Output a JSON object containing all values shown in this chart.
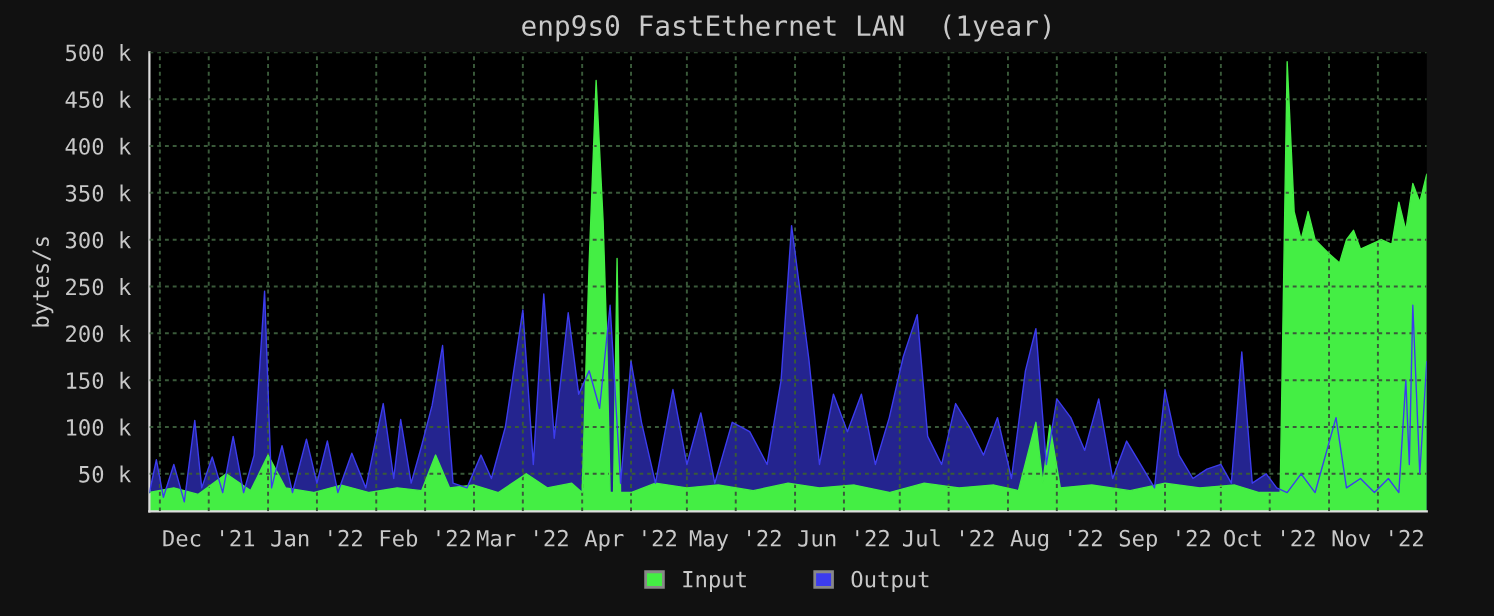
{
  "chart_data": {
    "type": "area",
    "title": "enp9s0 FastEthernet LAN  (1year)",
    "ylabel": "bytes/s",
    "xlim": [
      "2021-11-28",
      "2022-11-29"
    ],
    "xticks": [
      {
        "value": "2021-12-01",
        "label": null
      },
      {
        "value": "2021-12-15",
        "label": "Dec '21"
      },
      {
        "value": "2022-01-01",
        "label": null
      },
      {
        "value": "2022-01-15",
        "label": "Jan '22"
      },
      {
        "value": "2022-02-01",
        "label": null
      },
      {
        "value": "2022-02-15",
        "label": "Feb '22"
      },
      {
        "value": "2022-03-01",
        "label": null
      },
      {
        "value": "2022-03-15",
        "label": "Mar '22"
      },
      {
        "value": "2022-04-01",
        "label": null
      },
      {
        "value": "2022-04-15",
        "label": "Apr '22"
      },
      {
        "value": "2022-05-01",
        "label": null
      },
      {
        "value": "2022-05-15",
        "label": "May '22"
      },
      {
        "value": "2022-06-01",
        "label": null
      },
      {
        "value": "2022-06-15",
        "label": "Jun '22"
      },
      {
        "value": "2022-07-01",
        "label": null
      },
      {
        "value": "2022-07-15",
        "label": "Jul '22"
      },
      {
        "value": "2022-08-01",
        "label": null
      },
      {
        "value": "2022-08-15",
        "label": "Aug '22"
      },
      {
        "value": "2022-09-01",
        "label": null
      },
      {
        "value": "2022-09-15",
        "label": "Sep '22"
      },
      {
        "value": "2022-10-01",
        "label": null
      },
      {
        "value": "2022-10-15",
        "label": "Oct '22"
      },
      {
        "value": "2022-11-01",
        "label": null
      },
      {
        "value": "2022-11-15",
        "label": "Nov '22"
      }
    ],
    "ylim": [
      10000,
      500000
    ],
    "yticks": [
      {
        "value": 50000,
        "label": "50 k"
      },
      {
        "value": 100000,
        "label": "100 k"
      },
      {
        "value": 150000,
        "label": "150 k"
      },
      {
        "value": 200000,
        "label": "200 k"
      },
      {
        "value": 250000,
        "label": "250 k"
      },
      {
        "value": 300000,
        "label": "300 k"
      },
      {
        "value": 350000,
        "label": "350 k"
      },
      {
        "value": 400000,
        "label": "400 k"
      },
      {
        "value": 450000,
        "label": "450 k"
      },
      {
        "value": 500000,
        "label": "500 k"
      }
    ],
    "grid": true,
    "legend": "bottom",
    "series": [
      {
        "name": "Input",
        "color": "#44ee44",
        "x": [
          "2021-11-28",
          "2021-12-05",
          "2021-12-12",
          "2021-12-20",
          "2021-12-27",
          "2022-01-01",
          "2022-01-06",
          "2022-01-14",
          "2022-01-22",
          "2022-01-30",
          "2022-02-07",
          "2022-02-14",
          "2022-02-18",
          "2022-02-22",
          "2022-03-01",
          "2022-03-08",
          "2022-03-16",
          "2022-03-22",
          "2022-03-29",
          "2022-04-01",
          "2022-04-03",
          "2022-04-05",
          "2022-04-07",
          "2022-04-08",
          "2022-04-09",
          "2022-04-10",
          "2022-04-11",
          "2022-04-12",
          "2022-04-15",
          "2022-04-22",
          "2022-05-01",
          "2022-05-10",
          "2022-05-20",
          "2022-05-30",
          "2022-06-08",
          "2022-06-18",
          "2022-06-28",
          "2022-07-08",
          "2022-07-18",
          "2022-07-28",
          "2022-08-04",
          "2022-08-09",
          "2022-08-11",
          "2022-08-13",
          "2022-08-16",
          "2022-08-25",
          "2022-09-05",
          "2022-09-15",
          "2022-09-25",
          "2022-10-05",
          "2022-10-12",
          "2022-10-18",
          "2022-10-20",
          "2022-10-22",
          "2022-10-24",
          "2022-10-26",
          "2022-10-28",
          "2022-11-01",
          "2022-11-04",
          "2022-11-06",
          "2022-11-08",
          "2022-11-10",
          "2022-11-13",
          "2022-11-16",
          "2022-11-19",
          "2022-11-21",
          "2022-11-23",
          "2022-11-25",
          "2022-11-27",
          "2022-11-29"
        ],
        "values": [
          30000,
          35000,
          28000,
          50000,
          32000,
          70000,
          35000,
          30000,
          38000,
          30000,
          35000,
          32000,
          70000,
          35000,
          38000,
          30000,
          50000,
          35000,
          40000,
          30000,
          275000,
          470000,
          320000,
          200000,
          30000,
          30000,
          280000,
          30000,
          30000,
          40000,
          35000,
          38000,
          32000,
          40000,
          35000,
          38000,
          30000,
          40000,
          35000,
          38000,
          32000,
          105000,
          40000,
          102000,
          35000,
          38000,
          32000,
          40000,
          35000,
          38000,
          30000,
          30000,
          490000,
          330000,
          300000,
          330000,
          300000,
          285000,
          275000,
          300000,
          310000,
          290000,
          295000,
          300000,
          295000,
          340000,
          310000,
          360000,
          340000,
          370000
        ]
      },
      {
        "name": "Output",
        "color": "#3c3cee",
        "x": [
          "2021-11-28",
          "2021-11-30",
          "2021-12-02",
          "2021-12-05",
          "2021-12-08",
          "2021-12-11",
          "2021-12-13",
          "2021-12-16",
          "2021-12-19",
          "2021-12-22",
          "2021-12-25",
          "2021-12-28",
          "2021-12-31",
          "2022-01-02",
          "2022-01-05",
          "2022-01-08",
          "2022-01-12",
          "2022-01-15",
          "2022-01-18",
          "2022-01-21",
          "2022-01-25",
          "2022-01-29",
          "2022-02-03",
          "2022-02-06",
          "2022-02-08",
          "2022-02-11",
          "2022-02-14",
          "2022-02-17",
          "2022-02-20",
          "2022-02-23",
          "2022-02-27",
          "2022-03-03",
          "2022-03-06",
          "2022-03-10",
          "2022-03-15",
          "2022-03-18",
          "2022-03-21",
          "2022-03-24",
          "2022-03-28",
          "2022-03-31",
          "2022-04-03",
          "2022-04-06",
          "2022-04-09",
          "2022-04-12",
          "2022-04-15",
          "2022-04-18",
          "2022-04-22",
          "2022-04-27",
          "2022-05-01",
          "2022-05-05",
          "2022-05-09",
          "2022-05-14",
          "2022-05-19",
          "2022-05-24",
          "2022-05-28",
          "2022-05-31",
          "2022-06-05",
          "2022-06-08",
          "2022-06-12",
          "2022-06-16",
          "2022-06-20",
          "2022-06-24",
          "2022-06-28",
          "2022-07-02",
          "2022-07-06",
          "2022-07-09",
          "2022-07-13",
          "2022-07-17",
          "2022-07-21",
          "2022-07-25",
          "2022-07-29",
          "2022-08-02",
          "2022-08-06",
          "2022-08-09",
          "2022-08-12",
          "2022-08-15",
          "2022-08-19",
          "2022-08-23",
          "2022-08-27",
          "2022-08-31",
          "2022-09-04",
          "2022-09-08",
          "2022-09-12",
          "2022-09-15",
          "2022-09-19",
          "2022-09-23",
          "2022-09-27",
          "2022-10-01",
          "2022-10-04",
          "2022-10-07",
          "2022-10-10",
          "2022-10-14",
          "2022-10-17",
          "2022-10-20",
          "2022-10-24",
          "2022-10-28",
          "2022-11-03",
          "2022-11-06",
          "2022-11-10",
          "2022-11-14",
          "2022-11-18",
          "2022-11-21",
          "2022-11-23",
          "2022-11-24",
          "2022-11-25",
          "2022-11-27",
          "2022-11-29"
        ],
        "values": [
          30000,
          65000,
          25000,
          60000,
          20000,
          107000,
          35000,
          68000,
          30000,
          90000,
          30000,
          70000,
          245000,
          35000,
          80000,
          30000,
          87000,
          40000,
          85000,
          30000,
          72000,
          35000,
          125000,
          45000,
          108000,
          40000,
          80000,
          123000,
          187000,
          40000,
          35000,
          70000,
          45000,
          100000,
          225000,
          60000,
          242000,
          88000,
          222000,
          135000,
          160000,
          120000,
          230000,
          40000,
          170000,
          105000,
          40000,
          140000,
          60000,
          115000,
          40000,
          105000,
          95000,
          60000,
          150000,
          315000,
          171000,
          60000,
          135000,
          95000,
          135000,
          60000,
          110000,
          175000,
          220000,
          90000,
          60000,
          125000,
          100000,
          70000,
          110000,
          45000,
          160000,
          205000,
          60000,
          130000,
          110000,
          75000,
          130000,
          45000,
          85000,
          60000,
          35000,
          140000,
          70000,
          45000,
          55000,
          60000,
          40000,
          180000,
          40000,
          50000,
          35000,
          30000,
          50000,
          30000,
          110000,
          35000,
          45000,
          30000,
          45000,
          30000,
          150000,
          60000,
          230000,
          50000,
          170000
        ]
      }
    ]
  }
}
